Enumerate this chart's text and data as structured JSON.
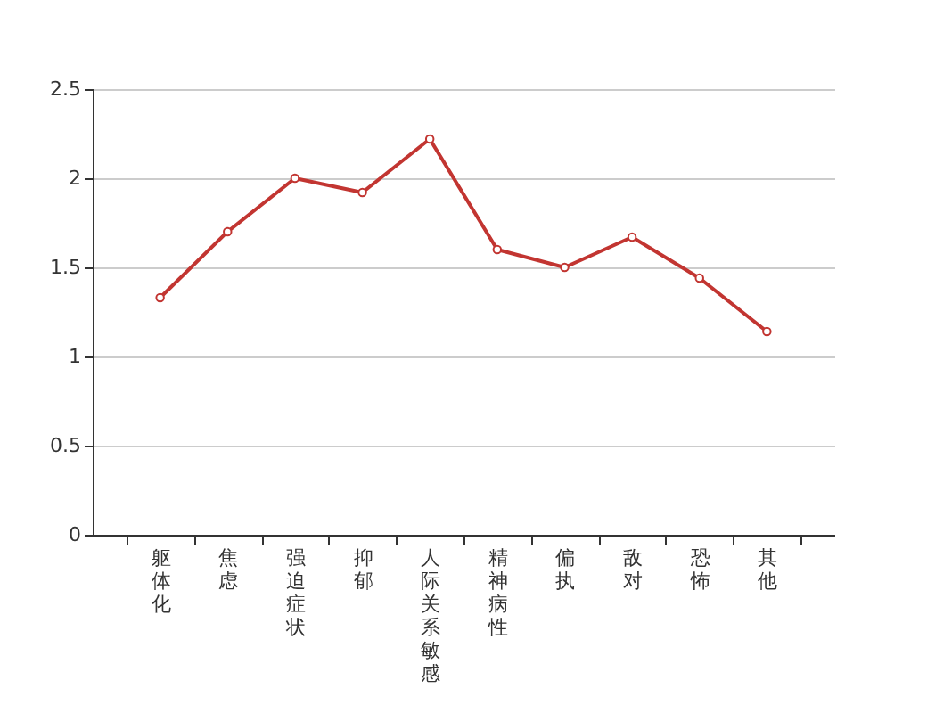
{
  "chart_data": {
    "type": "line",
    "categories": [
      "躯体化",
      "焦虑",
      "强迫症状",
      "抑郁",
      "人际关系敏感",
      "精神病性",
      "偏执",
      "敌对",
      "恐怖",
      "其他"
    ],
    "series": [
      {
        "color": "#c23531",
        "values": [
          1.33,
          1.7,
          2.0,
          1.92,
          2.22,
          1.6,
          1.5,
          1.67,
          1.44,
          1.14
        ]
      }
    ],
    "ylim": [
      0,
      2.5
    ],
    "yticks": [
      0,
      0.5,
      1,
      1.5,
      2,
      2.5
    ],
    "grid": "y",
    "marker": "circle",
    "line_style": "solid",
    "legend": false
  }
}
